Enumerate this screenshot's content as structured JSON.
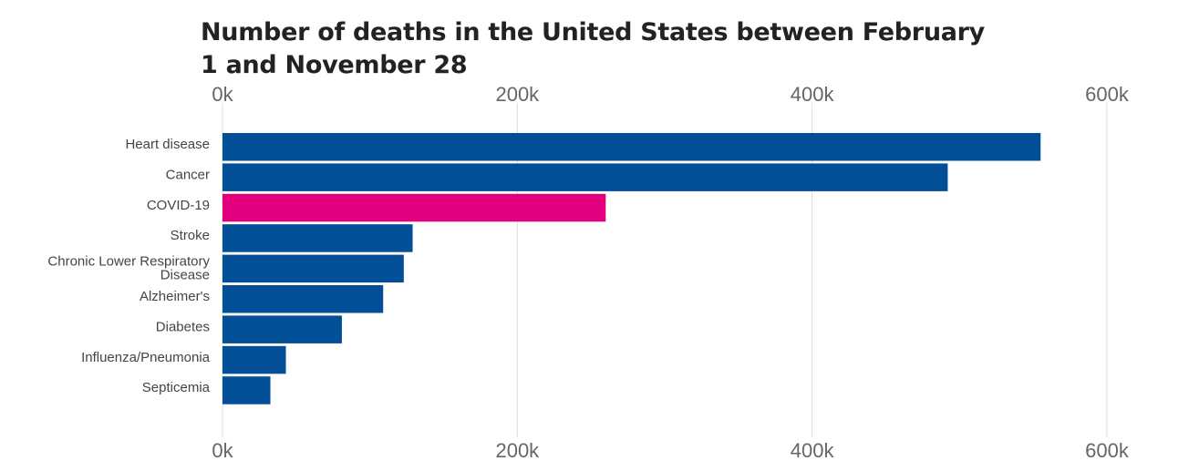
{
  "chart_data": {
    "type": "bar",
    "orientation": "horizontal",
    "title": "Number of deaths in the United States between February 1 and November 28",
    "categories": [
      "Heart disease",
      "Cancer",
      "COVID-19",
      "Stroke",
      "Chronic Lower Respiratory Disease",
      "Alzheimer's",
      "Diabetes",
      "Influenza/Pneumonia",
      "Septicemia"
    ],
    "values": [
      555000,
      492000,
      260000,
      129000,
      123000,
      109000,
      81000,
      43000,
      32500
    ],
    "highlight": [
      "COVID-19"
    ],
    "colors": {
      "default": "#034f97",
      "highlight": "#e3007f",
      "grid": "#dddddd",
      "title": "#222222",
      "axis_text": "#666666",
      "category_text": "#444444"
    },
    "xlim": [
      0,
      600000
    ],
    "x_ticks": [
      0,
      200000,
      400000,
      600000
    ],
    "x_tick_labels": [
      "0k",
      "200k",
      "400k",
      "600k"
    ],
    "grid": true,
    "xlabel": "",
    "ylabel": ""
  }
}
